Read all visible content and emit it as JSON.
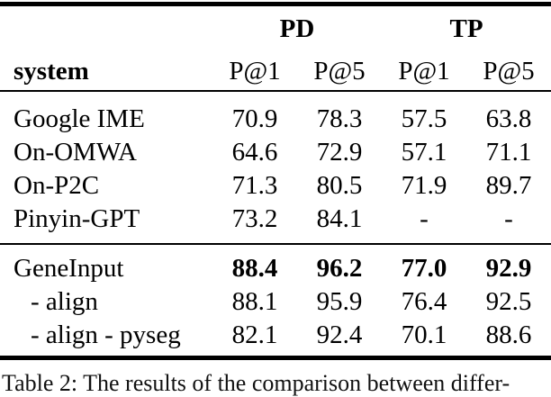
{
  "page": {
    "background": "#ffffff",
    "text_color": "#000000"
  },
  "table": {
    "group_headers": [
      "PD",
      "TP"
    ],
    "system_header": "system",
    "subheaders": [
      "P@1",
      "P@5",
      "P@1",
      "P@5"
    ],
    "sections": [
      {
        "rows": [
          {
            "system": "Google IME",
            "values": [
              "70.9",
              "78.3",
              "57.5",
              "63.8"
            ]
          },
          {
            "system": "On-OMWA",
            "values": [
              "64.6",
              "72.9",
              "57.1",
              "71.1"
            ]
          },
          {
            "system": "On-P2C",
            "values": [
              "71.3",
              "80.5",
              "71.9",
              "89.7"
            ]
          },
          {
            "system": "Pinyin-GPT",
            "values": [
              "73.2",
              "84.1",
              "-",
              "-"
            ]
          }
        ]
      },
      {
        "rows": [
          {
            "system": "GeneInput",
            "values": [
              "88.4",
              "96.2",
              "77.0",
              "92.9"
            ]
          },
          {
            "system": "- align",
            "values": [
              "88.1",
              "95.9",
              "76.4",
              "92.5"
            ]
          },
          {
            "system": "- align - pyseg",
            "values": [
              "82.1",
              "92.4",
              "70.1",
              "88.6"
            ]
          }
        ]
      }
    ],
    "caption": "Table 2: The results of the comparison between differ-"
  }
}
